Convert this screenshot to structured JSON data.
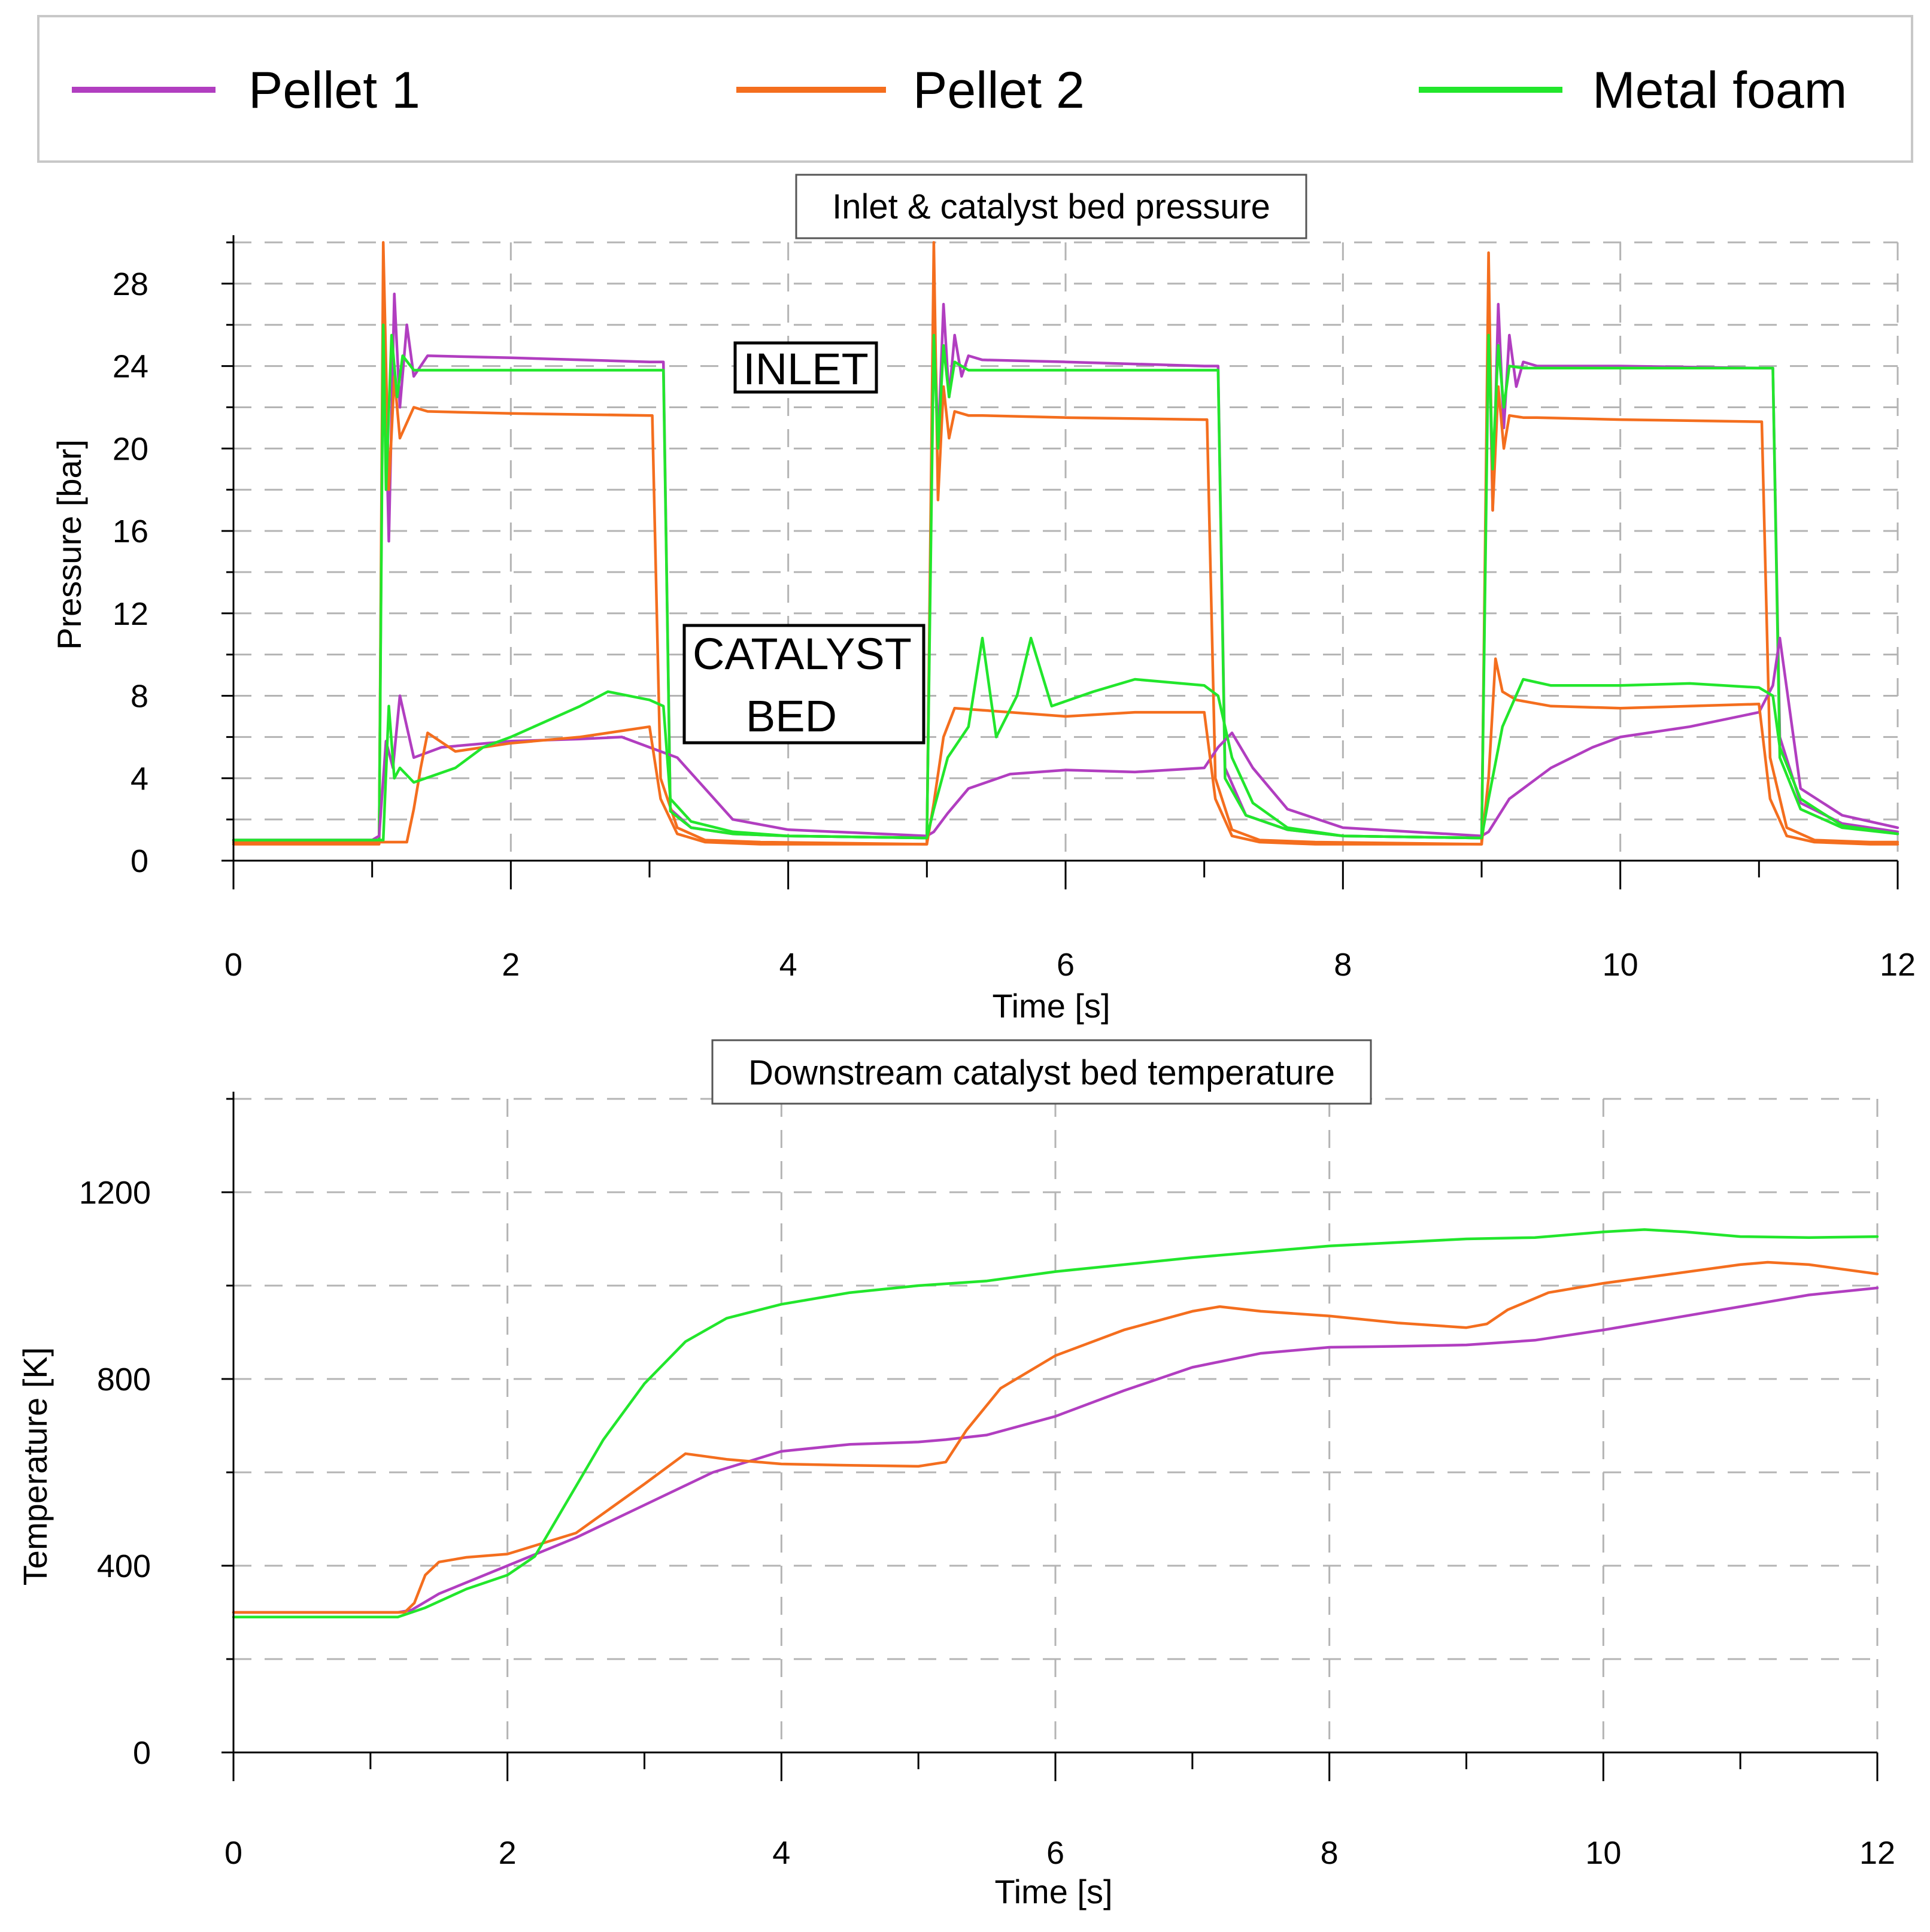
{
  "legend": {
    "entries": [
      {
        "label": "Pellet 1",
        "color": "#b13ec0"
      },
      {
        "label": "Pellet 2",
        "color": "#f46e1e"
      },
      {
        "label": "Metal foam",
        "color": "#22e62c"
      }
    ]
  },
  "chart_data": [
    {
      "type": "line",
      "title": "Inlet & catalyst bed pressure",
      "xlabel": "Time [s]",
      "ylabel": "Pressure [bar]",
      "xlim": [
        0,
        12
      ],
      "ylim": [
        0,
        30
      ],
      "xticks": [
        0,
        2,
        4,
        6,
        8,
        10,
        12
      ],
      "yticks": [
        0,
        4,
        8,
        12,
        16,
        20,
        24,
        28
      ],
      "grid": true,
      "annotations": [
        "INLET",
        "CATALYST",
        "BED"
      ],
      "series": [
        {
          "name": "Pellet 1 inlet",
          "legend": "Pellet 1",
          "x": [
            0,
            1.05,
            1.08,
            1.12,
            1.16,
            1.2,
            1.25,
            1.3,
            1.4,
            2.0,
            3.0,
            3.1,
            3.15,
            3.3,
            3.6,
            4.0,
            5.0,
            5.05,
            5.08,
            5.12,
            5.16,
            5.2,
            5.25,
            5.3,
            5.4,
            6.0,
            7.0,
            7.1,
            7.15,
            7.3,
            7.6,
            8.0,
            9.0,
            9.05,
            9.08,
            9.12,
            9.16,
            9.2,
            9.25,
            9.3,
            9.4,
            10.0,
            11.0,
            11.1,
            11.15,
            11.3,
            11.6,
            12.0
          ],
          "y": [
            1.0,
            1.0,
            27.5,
            15.5,
            27.5,
            22.0,
            26.0,
            23.5,
            24.5,
            24.4,
            24.2,
            24.2,
            2.5,
            1.6,
            1.3,
            1.2,
            1.1,
            27.5,
            20.0,
            27.0,
            22.5,
            25.5,
            23.5,
            24.5,
            24.3,
            24.2,
            24.0,
            24.0,
            4.5,
            2.2,
            1.5,
            1.2,
            1.1,
            27.0,
            17.0,
            27.0,
            21.0,
            25.5,
            23.0,
            24.2,
            24.0,
            24.0,
            23.9,
            23.9,
            6.0,
            2.8,
            1.8,
            1.4
          ]
        },
        {
          "name": "Pellet 2 inlet",
          "legend": "Pellet 2",
          "x": [
            0,
            1.05,
            1.08,
            1.12,
            1.16,
            1.2,
            1.3,
            1.4,
            2.0,
            3.0,
            3.02,
            3.08,
            3.2,
            3.4,
            3.8,
            5.0,
            5.05,
            5.08,
            5.12,
            5.16,
            5.2,
            5.3,
            5.4,
            6.0,
            7.0,
            7.02,
            7.08,
            7.2,
            7.4,
            7.8,
            9.0,
            9.05,
            9.08,
            9.12,
            9.16,
            9.2,
            9.3,
            9.4,
            10.0,
            11.0,
            11.02,
            11.08,
            11.2,
            11.4,
            11.8,
            12.0
          ],
          "y": [
            0.8,
            0.8,
            30.0,
            18.0,
            23.5,
            20.5,
            22.0,
            21.8,
            21.7,
            21.6,
            21.6,
            4.0,
            1.6,
            1.0,
            0.9,
            0.8,
            30.0,
            17.5,
            23.0,
            20.5,
            21.8,
            21.6,
            21.6,
            21.5,
            21.4,
            21.4,
            4.0,
            1.5,
            1.0,
            0.9,
            0.8,
            29.5,
            17.0,
            23.0,
            20.0,
            21.6,
            21.5,
            21.5,
            21.4,
            21.3,
            21.3,
            5.0,
            1.6,
            1.0,
            0.9,
            0.9
          ]
        },
        {
          "name": "Metal foam inlet",
          "legend": "Metal foam",
          "x": [
            0,
            1.05,
            1.08,
            1.1,
            1.14,
            1.18,
            1.22,
            1.3,
            2.0,
            3.0,
            3.1,
            3.15,
            3.3,
            3.6,
            4.0,
            5.0,
            5.05,
            5.08,
            5.12,
            5.16,
            5.2,
            5.3,
            6.0,
            7.0,
            7.1,
            7.15,
            7.3,
            7.6,
            8.0,
            9.0,
            9.05,
            9.08,
            9.12,
            9.16,
            9.2,
            9.3,
            10.0,
            11.0,
            11.1,
            11.15,
            11.3,
            11.6,
            12.0
          ],
          "y": [
            1.0,
            1.0,
            26.0,
            18.0,
            25.5,
            22.5,
            24.5,
            23.8,
            23.8,
            23.8,
            23.8,
            2.4,
            1.6,
            1.3,
            1.2,
            1.1,
            25.5,
            20.0,
            25.0,
            22.5,
            24.2,
            23.8,
            23.8,
            23.8,
            23.8,
            4.0,
            2.2,
            1.5,
            1.2,
            1.1,
            25.5,
            19.0,
            25.0,
            22.0,
            24.0,
            23.9,
            23.9,
            23.9,
            23.9,
            5.0,
            2.5,
            1.6,
            1.3
          ]
        },
        {
          "name": "Pellet 1 catalyst bed",
          "legend": "Pellet 1",
          "x": [
            0,
            1.0,
            1.05,
            1.1,
            1.15,
            1.2,
            1.3,
            1.5,
            2.0,
            2.5,
            2.8,
            3.0,
            3.2,
            3.4,
            3.6,
            4.0,
            5.0,
            5.05,
            5.15,
            5.3,
            5.6,
            6.0,
            6.5,
            7.0,
            7.1,
            7.2,
            7.35,
            7.6,
            8.0,
            9.0,
            9.05,
            9.2,
            9.5,
            9.8,
            10.0,
            10.5,
            11.0,
            11.1,
            11.15,
            11.3,
            11.6,
            12.0
          ],
          "y": [
            1.0,
            1.0,
            1.2,
            5.8,
            4.5,
            8.0,
            5.0,
            5.5,
            5.8,
            5.9,
            6.0,
            5.5,
            5.0,
            3.5,
            2.0,
            1.5,
            1.2,
            1.4,
            2.3,
            3.5,
            4.2,
            4.4,
            4.3,
            4.5,
            5.5,
            6.2,
            4.5,
            2.5,
            1.6,
            1.2,
            1.4,
            3.0,
            4.5,
            5.5,
            6.0,
            6.5,
            7.2,
            8.5,
            10.8,
            3.5,
            2.2,
            1.6
          ]
        },
        {
          "name": "Pellet 2 catalyst bed",
          "legend": "Pellet 2",
          "x": [
            0,
            1.25,
            1.3,
            1.35,
            1.4,
            1.6,
            2.0,
            2.5,
            3.0,
            3.08,
            3.2,
            3.4,
            3.8,
            5.0,
            5.05,
            5.12,
            5.2,
            5.4,
            6.0,
            6.5,
            7.0,
            7.08,
            7.2,
            7.4,
            7.8,
            9.0,
            9.05,
            9.1,
            9.15,
            9.25,
            9.5,
            10.0,
            10.5,
            11.0,
            11.08,
            11.2,
            11.4,
            11.8,
            12.0
          ],
          "y": [
            0.9,
            0.9,
            2.5,
            4.5,
            6.2,
            5.3,
            5.7,
            6.0,
            6.5,
            3.0,
            1.3,
            0.9,
            0.8,
            0.8,
            2.8,
            6.0,
            7.4,
            7.3,
            7.0,
            7.2,
            7.2,
            3.0,
            1.2,
            0.9,
            0.8,
            0.8,
            4.0,
            9.8,
            8.2,
            7.8,
            7.5,
            7.4,
            7.5,
            7.6,
            3.0,
            1.2,
            0.9,
            0.8,
            0.8
          ]
        },
        {
          "name": "Metal foam catalyst bed",
          "legend": "Metal foam",
          "x": [
            0,
            1.08,
            1.12,
            1.16,
            1.2,
            1.3,
            1.6,
            1.8,
            2.0,
            2.5,
            2.7,
            3.0,
            3.1,
            3.15,
            3.3,
            3.6,
            4.0,
            5.0,
            5.05,
            5.15,
            5.3,
            5.4,
            5.5,
            5.65,
            5.75,
            5.9,
            6.2,
            6.5,
            7.0,
            7.1,
            7.2,
            7.35,
            7.6,
            8.0,
            9.0,
            9.05,
            9.15,
            9.3,
            9.5,
            10.0,
            10.5,
            11.0,
            11.1,
            11.15,
            11.3,
            11.6,
            12.0
          ],
          "y": [
            1.0,
            1.0,
            7.5,
            4.0,
            4.5,
            3.8,
            4.5,
            5.5,
            6.0,
            7.5,
            8.2,
            7.8,
            7.5,
            3.0,
            1.9,
            1.4,
            1.2,
            1.1,
            2.5,
            5.0,
            6.5,
            10.8,
            6.0,
            8.0,
            10.8,
            7.5,
            8.2,
            8.8,
            8.5,
            8.0,
            5.0,
            2.8,
            1.6,
            1.2,
            1.1,
            3.0,
            6.5,
            8.8,
            8.5,
            8.5,
            8.6,
            8.4,
            8.0,
            5.5,
            3.0,
            1.7,
            1.3
          ]
        }
      ]
    },
    {
      "type": "line",
      "title": "Downstream catalyst bed temperature",
      "xlabel": "Time [s]",
      "ylabel": "Temperature [K]",
      "xlim": [
        0,
        12
      ],
      "ylim": [
        0,
        1400
      ],
      "xticks": [
        0,
        2,
        4,
        6,
        8,
        10,
        12
      ],
      "yticks": [
        0,
        400,
        800,
        1200
      ],
      "grid": true,
      "series": [
        {
          "name": "Pellet 1",
          "x": [
            0,
            1.2,
            1.3,
            1.5,
            2.0,
            2.5,
            3.0,
            3.5,
            4.0,
            4.5,
            5.0,
            5.2,
            5.5,
            6.0,
            6.5,
            7.0,
            7.5,
            8.0,
            8.5,
            9.0,
            9.5,
            10.0,
            10.5,
            11.0,
            11.5,
            12.0
          ],
          "y": [
            300,
            300,
            305,
            340,
            400,
            460,
            530,
            600,
            645,
            660,
            665,
            670,
            680,
            720,
            775,
            825,
            855,
            868,
            870,
            873,
            883,
            905,
            930,
            955,
            980,
            995
          ]
        },
        {
          "name": "Pellet 2",
          "x": [
            0,
            1.25,
            1.32,
            1.4,
            1.5,
            1.7,
            2.0,
            2.5,
            3.0,
            3.3,
            3.6,
            4.0,
            4.5,
            5.0,
            5.2,
            5.35,
            5.6,
            6.0,
            6.5,
            7.0,
            7.2,
            7.5,
            8.0,
            8.5,
            9.0,
            9.15,
            9.3,
            9.6,
            10.0,
            10.5,
            11.0,
            11.2,
            11.5,
            12.0
          ],
          "y": [
            300,
            300,
            320,
            380,
            408,
            418,
            425,
            470,
            575,
            640,
            628,
            618,
            615,
            613,
            622,
            690,
            780,
            850,
            905,
            945,
            955,
            945,
            935,
            920,
            910,
            918,
            948,
            985,
            1005,
            1025,
            1045,
            1050,
            1045,
            1025
          ]
        },
        {
          "name": "Metal foam",
          "x": [
            0,
            1.2,
            1.4,
            1.7,
            2.0,
            2.2,
            2.4,
            2.7,
            3.0,
            3.3,
            3.6,
            4.0,
            4.5,
            5.0,
            5.5,
            6.0,
            7.0,
            8.0,
            9.0,
            9.5,
            10.0,
            10.3,
            10.6,
            11.0,
            11.5,
            12.0
          ],
          "y": [
            290,
            290,
            310,
            350,
            380,
            420,
            520,
            670,
            790,
            880,
            930,
            960,
            985,
            1000,
            1010,
            1030,
            1060,
            1085,
            1100,
            1103,
            1115,
            1120,
            1115,
            1105,
            1103,
            1105
          ]
        }
      ]
    }
  ]
}
